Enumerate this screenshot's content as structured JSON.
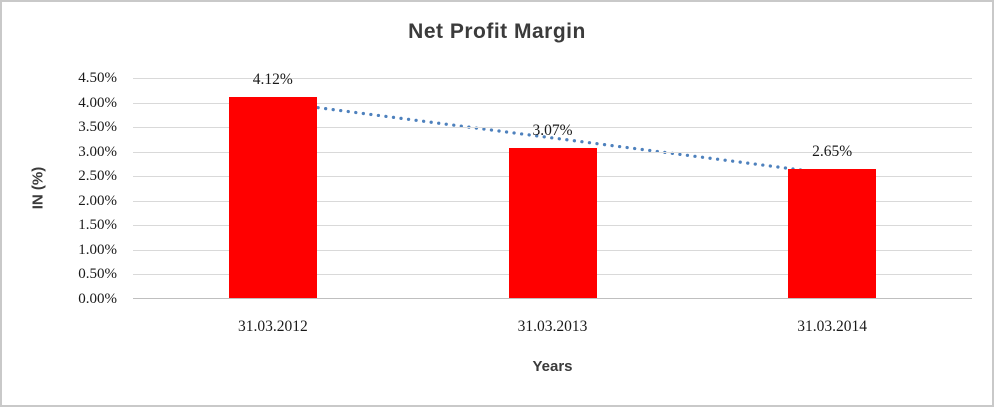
{
  "chart_data": {
    "type": "bar",
    "title": "Net Profit Margin",
    "xlabel": "Years",
    "ylabel": "IN (%)",
    "categories": [
      "31.03.2012",
      "31.03.2013",
      "31.03.2014"
    ],
    "series": [
      {
        "name": "Net Profit Margin",
        "values": [
          4.12,
          3.07,
          2.65
        ]
      }
    ],
    "data_labels": [
      "4.12%",
      "3.07%",
      "2.65%"
    ],
    "y_tick_labels": [
      "4.50%",
      "4.00%",
      "3.50%",
      "3.00%",
      "2.50%",
      "2.00%",
      "1.50%",
      "1.00%",
      "0.50%",
      "0.00%"
    ],
    "y_tick_values": [
      4.5,
      4.0,
      3.5,
      3.0,
      2.5,
      2.0,
      1.5,
      1.0,
      0.5,
      0.0
    ],
    "ylim": [
      0,
      4.5
    ],
    "grid": true,
    "legend": "none",
    "trendline": {
      "type": "linear",
      "style": "dotted"
    },
    "colors": {
      "bar": "#ff0000",
      "trendline": "#4e81bd",
      "gridline": "#d9d9d9",
      "axis_line": "#bfbfbf",
      "tick_text": "#1a1a1a",
      "title_text": "#3b3b3b",
      "chart_border": "#c9c9c9"
    }
  }
}
